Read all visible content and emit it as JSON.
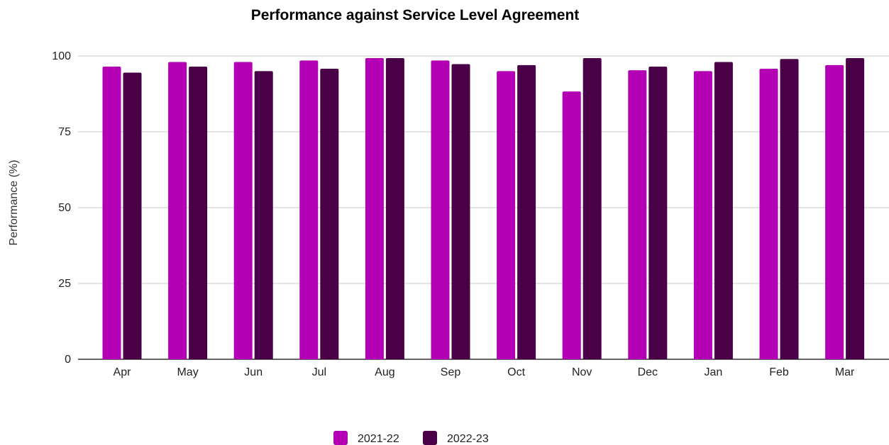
{
  "chart_data": {
    "type": "bar",
    "title": "Performance against Service Level Agreement",
    "xlabel": "",
    "ylabel": "Performance (%)",
    "ylim": [
      0,
      100
    ],
    "yticks": [
      0,
      25,
      50,
      75,
      100
    ],
    "grid": true,
    "legend_position": "bottom",
    "categories": [
      "Apr",
      "May",
      "Jun",
      "Jul",
      "Aug",
      "Sep",
      "Oct",
      "Nov",
      "Dec",
      "Jan",
      "Feb",
      "Mar"
    ],
    "series": [
      {
        "name": "2021-22",
        "color": "#b400b4",
        "values": [
          96.5,
          98,
          98,
          98.5,
          99.3,
          98.5,
          95,
          88.3,
          95.3,
          95,
          95.8,
          97
        ]
      },
      {
        "name": "2022-23",
        "color": "#4a0047",
        "values": [
          94.5,
          96.5,
          95,
          95.8,
          99.3,
          97.3,
          97,
          99.3,
          96.5,
          98,
          99,
          99.3
        ]
      }
    ]
  }
}
